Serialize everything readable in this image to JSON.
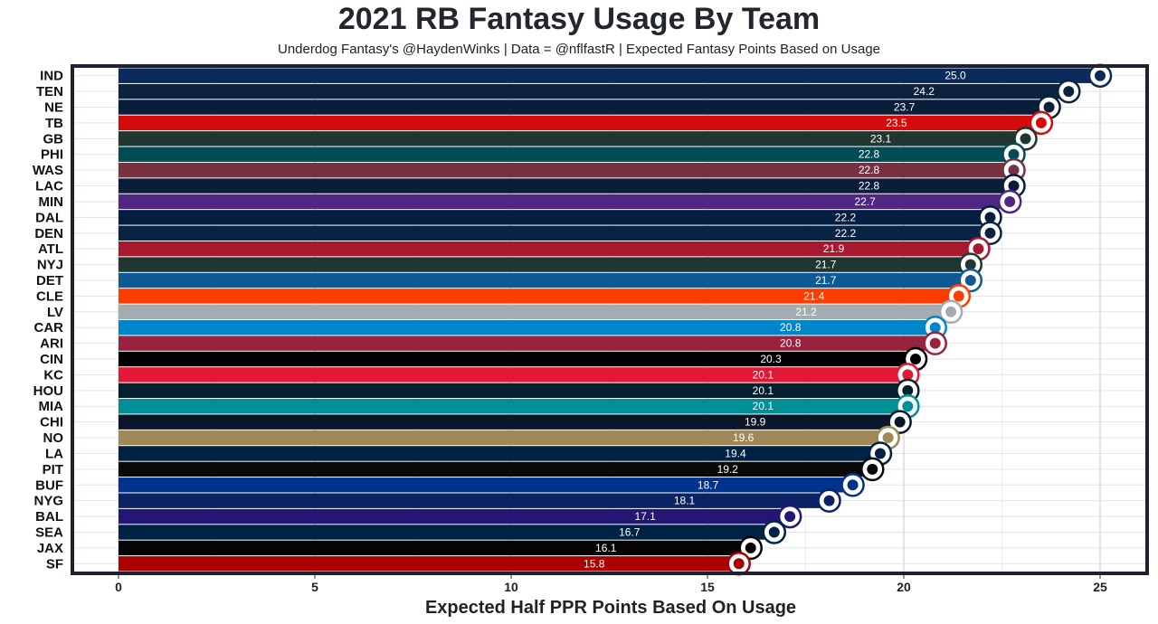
{
  "chart_data": {
    "type": "bar",
    "orientation": "horizontal",
    "title": "2021 RB Fantasy Usage By Team",
    "subtitle": "Underdog Fantasy's @HaydenWinks | Data = @nflfastR | Expected Fantasy Points Based on Usage",
    "xlabel": "Expected Half PPR Points Based On Usage",
    "ylabel": "",
    "xlim": [
      0,
      25
    ],
    "x_ticks": [
      0,
      5,
      10,
      15,
      20,
      25
    ],
    "grid": true,
    "legend": "none",
    "categories": [
      "IND",
      "TEN",
      "NE",
      "TB",
      "GB",
      "PHI",
      "WAS",
      "LAC",
      "MIN",
      "DAL",
      "DEN",
      "ATL",
      "NYJ",
      "DET",
      "CLE",
      "LV",
      "CAR",
      "ARI",
      "CIN",
      "KC",
      "HOU",
      "MIA",
      "CHI",
      "NO",
      "LA",
      "PIT",
      "BUF",
      "NYG",
      "BAL",
      "SEA",
      "JAX",
      "SF"
    ],
    "values": [
      25.0,
      24.2,
      23.7,
      23.5,
      23.1,
      22.8,
      22.8,
      22.8,
      22.7,
      22.2,
      22.2,
      21.9,
      21.7,
      21.7,
      21.4,
      21.2,
      20.8,
      20.8,
      20.3,
      20.1,
      20.1,
      20.1,
      19.9,
      19.6,
      19.4,
      19.2,
      18.7,
      18.1,
      17.1,
      16.7,
      16.1,
      15.8
    ],
    "value_labels": [
      "25.0",
      "24.2",
      "23.7",
      "23.5",
      "23.1",
      "22.8",
      "22.8",
      "22.8",
      "22.7",
      "22.2",
      "22.2",
      "21.9",
      "21.7",
      "21.7",
      "21.4",
      "21.2",
      "20.8",
      "20.8",
      "20.3",
      "20.1",
      "20.1",
      "20.1",
      "19.9",
      "19.6",
      "19.4",
      "19.2",
      "18.7",
      "18.1",
      "17.1",
      "16.7",
      "16.1",
      "15.8"
    ],
    "colors": [
      "#0B2B5C",
      "#0C2340",
      "#0A1E3C",
      "#D50A0A",
      "#203731",
      "#004C54",
      "#773141",
      "#0B1D3A",
      "#4F2683",
      "#041E42",
      "#0A2343",
      "#A71930",
      "#203731",
      "#0E5A96",
      "#FF3C00",
      "#A5ACAF",
      "#0085CA",
      "#97233F",
      "#000000",
      "#E31837",
      "#03202F",
      "#008E97",
      "#0B162A",
      "#9F8958",
      "#002244",
      "#0A0A0A",
      "#00338D",
      "#0B2265",
      "#241773",
      "#002244",
      "#050505",
      "#AA0000"
    ],
    "logo_icons": [
      "colts-horseshoe-icon",
      "titans-icon",
      "patriots-icon",
      "buccaneers-icon",
      "packers-icon",
      "eagles-icon",
      "washington-icon",
      "chargers-icon",
      "vikings-icon",
      "cowboys-star-icon",
      "broncos-icon",
      "falcons-icon",
      "jets-icon",
      "lions-icon",
      "browns-helmet-icon",
      "raiders-shield-icon",
      "panthers-icon",
      "cardinals-icon",
      "bengals-icon",
      "chiefs-icon",
      "texans-icon",
      "dolphins-icon",
      "bears-icon",
      "saints-fleur-icon",
      "rams-icon",
      "steelers-icon",
      "bills-icon",
      "giants-icon",
      "ravens-icon",
      "seahawks-icon",
      "jaguars-icon",
      "49ers-icon"
    ]
  }
}
